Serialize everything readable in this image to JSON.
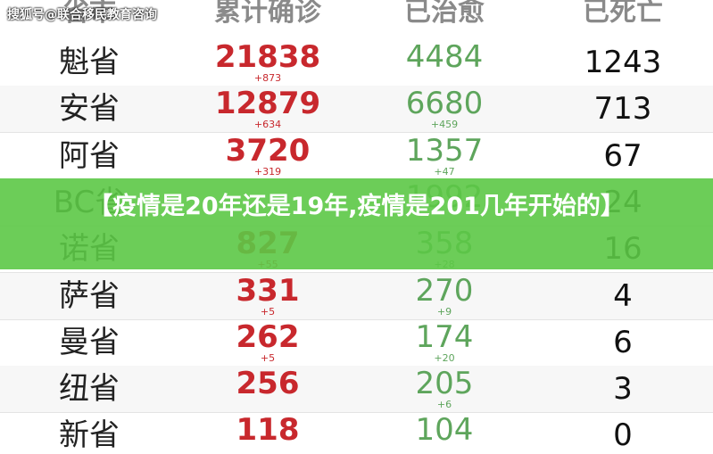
{
  "watermark": "搜狐号@联合移民教育咨询",
  "table": {
    "header": [
      "省市",
      "累计确诊",
      "已治愈",
      "已死亡"
    ],
    "rows": [
      {
        "name": "魁省",
        "confirmed": "21838",
        "confirmed_new": "+873",
        "cured": "4484",
        "deaths": "1243"
      },
      {
        "name": "安省",
        "confirmed": "12879",
        "confirmed_new": "+634",
        "cured": "6680",
        "cured_new": "+459",
        "deaths": "713"
      },
      {
        "name": "阿省",
        "confirmed": "3720",
        "confirmed_new": "+319",
        "cured": "1357",
        "cured_new": "+47",
        "deaths": "67"
      },
      {
        "name": "BC省",
        "cured": "1992",
        "deaths": "24"
      },
      {
        "name": "诺省",
        "confirmed": "827",
        "confirmed_new": "+55",
        "cured": "358",
        "cured_new": "+28",
        "deaths": "16"
      },
      {
        "name": "萨省",
        "confirmed": "331",
        "confirmed_new": "+5",
        "cured": "270",
        "cured_new": "+9",
        "deaths": "4"
      },
      {
        "name": "曼省",
        "confirmed": "262",
        "confirmed_new": "+5",
        "cured": "174",
        "cured_new": "+20",
        "deaths": "6"
      },
      {
        "name": "纽省",
        "confirmed": "256",
        "cured": "205",
        "cured_new": "+6",
        "deaths": "3"
      },
      {
        "name": "新省",
        "confirmed": "118",
        "cured": "104",
        "deaths": "0"
      }
    ]
  },
  "banner": "【疫情是20年还是19年,疫情是201几年开始的】"
}
